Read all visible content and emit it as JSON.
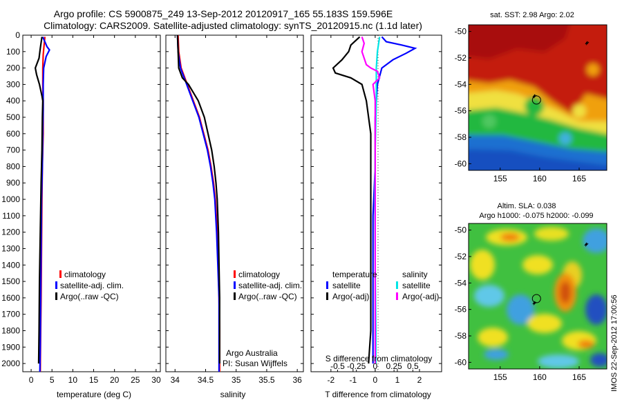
{
  "title": {
    "line1": "Argo profile: CS 5900875_249 13-Sep-2012 20120917_165 55.183S 159.596E",
    "line2": "Climatology: CARS2009. Satellite-adjusted climatology: synTS_20120915.nc (1.1d later)"
  },
  "colors": {
    "climatology": "#ff0000",
    "satellite": "#0000ff",
    "argo": "#000000",
    "sal_sat": "#00e5e5",
    "sal_argo": "#ff00ff"
  },
  "depth_ticks": [
    "0",
    "100",
    "200",
    "300",
    "400",
    "500",
    "600",
    "700",
    "800",
    "900",
    "1000",
    "1100",
    "1200",
    "1300",
    "1400",
    "1500",
    "1600",
    "1700",
    "1800",
    "1900",
    "2000"
  ],
  "chart_data": [
    {
      "type": "line",
      "xlabel": "temperature (deg C)",
      "xticks": [
        "0",
        "5",
        "10",
        "15",
        "20",
        "25",
        "30"
      ],
      "xlim": [
        -2,
        31
      ],
      "ylim": [
        2050,
        0
      ],
      "legend": [
        "climatology",
        "satellite-adj. clim.",
        "Argo(..raw -QC)"
      ],
      "series": [
        {
          "name": "climatology",
          "color": "#ff0000",
          "points": [
            [
              3.3,
              10
            ],
            [
              3.1,
              60
            ],
            [
              2.9,
              120
            ],
            [
              2.8,
              200
            ],
            [
              2.8,
              300
            ],
            [
              2.9,
              400
            ],
            [
              2.9,
              600
            ],
            [
              2.7,
              800
            ],
            [
              2.6,
              1000
            ],
            [
              2.5,
              1300
            ],
            [
              2.4,
              1600
            ],
            [
              2.3,
              1800
            ],
            [
              2.2,
              2050
            ]
          ]
        },
        {
          "name": "satellite-adj. clim.",
          "color": "#0000ff",
          "points": [
            [
              2.8,
              10
            ],
            [
              3.8,
              70
            ],
            [
              4.4,
              90
            ],
            [
              3.6,
              130
            ],
            [
              3.0,
              200
            ],
            [
              2.9,
              300
            ],
            [
              2.9,
              450
            ],
            [
              2.8,
              600
            ],
            [
              2.7,
              800
            ],
            [
              2.5,
              1000
            ],
            [
              2.4,
              1300
            ],
            [
              2.3,
              1600
            ],
            [
              2.2,
              1900
            ],
            [
              2.1,
              2050
            ]
          ]
        },
        {
          "name": "Argo(..raw -QC)",
          "color": "#000000",
          "points": [
            [
              2.6,
              10
            ],
            [
              2.2,
              80
            ],
            [
              1.9,
              140
            ],
            [
              1.0,
              200
            ],
            [
              1.3,
              240
            ],
            [
              2.0,
              300
            ],
            [
              2.6,
              370
            ],
            [
              2.8,
              400
            ],
            [
              2.7,
              500
            ],
            [
              2.6,
              700
            ],
            [
              2.4,
              900
            ],
            [
              2.2,
              1200
            ],
            [
              2.0,
              1500
            ],
            [
              1.9,
              1800
            ],
            [
              1.8,
              2000
            ]
          ]
        }
      ]
    },
    {
      "type": "line",
      "xlabel": "salinity",
      "xticks": [
        "34",
        "34.5",
        "35",
        "35.5",
        "36"
      ],
      "xlim": [
        33.85,
        36.1
      ],
      "ylim": [
        2050,
        0
      ],
      "legend": [
        "climatology",
        "satellite-adj. clim.",
        "Argo(..raw -QC)"
      ],
      "annotation": [
        "Argo Australia",
        "PI: Susan Wijffels"
      ],
      "series": [
        {
          "name": "climatology",
          "color": "#ff0000",
          "points": [
            [
              34.05,
              0
            ],
            [
              34.06,
              100
            ],
            [
              34.1,
              200
            ],
            [
              34.2,
              300
            ],
            [
              34.3,
              400
            ],
            [
              34.4,
              500
            ],
            [
              34.47,
              600
            ],
            [
              34.54,
              700
            ],
            [
              34.59,
              800
            ],
            [
              34.63,
              900
            ],
            [
              34.66,
              1000
            ],
            [
              34.69,
              1200
            ],
            [
              34.71,
              1400
            ],
            [
              34.72,
              1600
            ],
            [
              34.73,
              1800
            ],
            [
              34.73,
              2050
            ]
          ]
        },
        {
          "name": "satellite-adj. clim.",
          "color": "#0000ff",
          "points": [
            [
              34.04,
              0
            ],
            [
              34.05,
              100
            ],
            [
              34.09,
              200
            ],
            [
              34.19,
              300
            ],
            [
              34.29,
              400
            ],
            [
              34.39,
              500
            ],
            [
              34.46,
              600
            ],
            [
              34.53,
              700
            ],
            [
              34.58,
              800
            ],
            [
              34.62,
              900
            ],
            [
              34.65,
              1000
            ],
            [
              34.68,
              1200
            ],
            [
              34.7,
              1400
            ],
            [
              34.72,
              1600
            ],
            [
              34.72,
              1800
            ],
            [
              34.72,
              2050
            ]
          ]
        },
        {
          "name": "Argo(..raw -QC)",
          "color": "#000000",
          "points": [
            [
              34.04,
              0
            ],
            [
              34.05,
              100
            ],
            [
              34.06,
              200
            ],
            [
              34.12,
              260
            ],
            [
              34.22,
              300
            ],
            [
              34.38,
              400
            ],
            [
              34.48,
              500
            ],
            [
              34.54,
              600
            ],
            [
              34.6,
              700
            ],
            [
              34.64,
              800
            ],
            [
              34.67,
              900
            ],
            [
              34.69,
              1000
            ],
            [
              34.71,
              1200
            ],
            [
              34.72,
              1400
            ],
            [
              34.73,
              1600
            ],
            [
              34.73,
              1800
            ],
            [
              34.73,
              2000
            ]
          ]
        }
      ]
    },
    {
      "type": "line",
      "xlabel": "T difference from climatology",
      "xlabel2": "S difference from climatology",
      "xticks": [
        "-2",
        "-1",
        "0",
        "1",
        "2"
      ],
      "xticks2": [
        "-0.5",
        "-0.25",
        "0",
        "0.25",
        "0.5"
      ],
      "xlim": [
        -2.9,
        3.0
      ],
      "ylim": [
        2050,
        0
      ],
      "legend_left": {
        "heading": "temperature",
        "items": [
          "satellite",
          "Argo(-adj)"
        ]
      },
      "legend_right": {
        "heading": "salinity",
        "items": [
          "satellite",
          "Argo(-adj)"
        ]
      },
      "series": [
        {
          "name": "T satellite",
          "color": "#0000ff",
          "points": [
            [
              0.3,
              10
            ],
            [
              0.5,
              40
            ],
            [
              1.2,
              60
            ],
            [
              1.8,
              80
            ],
            [
              1.4,
              110
            ],
            [
              0.8,
              150
            ],
            [
              0.3,
              200
            ],
            [
              0.1,
              300
            ],
            [
              0,
              500
            ],
            [
              0,
              800
            ],
            [
              -0.1,
              1100
            ],
            [
              -0.1,
              1500
            ],
            [
              -0.1,
              1800
            ],
            [
              -0.1,
              2000
            ]
          ]
        },
        {
          "name": "T Argo(-adj)",
          "color": "#000000",
          "points": [
            [
              -0.7,
              10
            ],
            [
              -1.1,
              60
            ],
            [
              -1.2,
              100
            ],
            [
              -1.5,
              150
            ],
            [
              -1.9,
              200
            ],
            [
              -1.8,
              230
            ],
            [
              -1.1,
              260
            ],
            [
              -0.6,
              300
            ],
            [
              -0.4,
              400
            ],
            [
              -0.3,
              500
            ],
            [
              -0.2,
              600
            ],
            [
              -0.2,
              800
            ],
            [
              -0.2,
              1000
            ],
            [
              -0.2,
              1200
            ],
            [
              -0.2,
              1500
            ],
            [
              -0.2,
              1800
            ],
            [
              -0.3,
              2000
            ]
          ]
        },
        {
          "name": "S satellite",
          "color": "#00e5e5",
          "points": [
            [
              0.2,
              10
            ],
            [
              0.1,
              100
            ],
            [
              0.05,
              200
            ],
            [
              0.05,
              400
            ],
            [
              0,
              700
            ],
            [
              -0.02,
              1000
            ],
            [
              0,
              1400
            ],
            [
              0.03,
              1800
            ],
            [
              0.03,
              2000
            ]
          ]
        },
        {
          "name": "S Argo(-adj)",
          "color": "#ff00ff",
          "points": [
            [
              -0.6,
              10
            ],
            [
              -0.5,
              50
            ],
            [
              -0.6,
              100
            ],
            [
              -0.4,
              180
            ],
            [
              -0.2,
              200
            ],
            [
              0.1,
              220
            ],
            [
              0.2,
              260
            ],
            [
              -0.1,
              300
            ],
            [
              0,
              400
            ],
            [
              0,
              600
            ],
            [
              0,
              900
            ],
            [
              0,
              1300
            ],
            [
              0,
              1700
            ],
            [
              0,
              2000
            ]
          ]
        }
      ]
    },
    {
      "type": "heatmap",
      "title": "sat. SST: 2.98 Argo: 2.02",
      "xticks": [
        "155",
        "160",
        "165"
      ],
      "yticks": [
        "-50",
        "-52",
        "-54",
        "-56",
        "-58",
        "-60"
      ],
      "xlim": [
        151,
        168.5
      ],
      "ylim": [
        -60.5,
        -49.5
      ],
      "marker": {
        "lon": 159.6,
        "lat": -55.18
      }
    },
    {
      "type": "heatmap",
      "title": "Altim. SLA: 0.038",
      "title2": "Argo h1000: -0.075 h2000: -0.099",
      "xticks": [
        "155",
        "160",
        "165"
      ],
      "yticks": [
        "-50",
        "-52",
        "-54",
        "-56",
        "-58",
        "-60"
      ],
      "xlim": [
        151,
        168.5
      ],
      "ylim": [
        -60.5,
        -49.5
      ],
      "marker": {
        "lon": 159.6,
        "lat": -55.18
      }
    }
  ],
  "side_text": "IMOS 22-Sep-2012 17:00:56"
}
